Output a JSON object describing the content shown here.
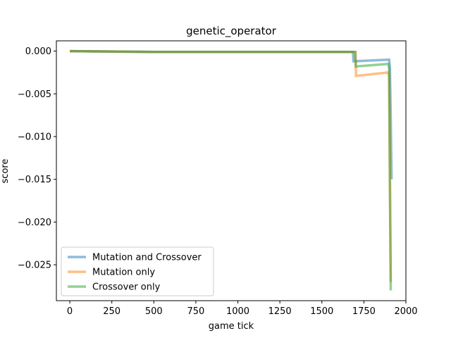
{
  "chart_data": {
    "type": "line",
    "title": "genetic_operator",
    "xlabel": "game tick",
    "ylabel": "score",
    "xlim": [
      -80,
      2000
    ],
    "ylim": [
      -0.0292,
      0.0012
    ],
    "xticks": [
      0,
      250,
      500,
      750,
      1000,
      1250,
      1500,
      1750,
      2000
    ],
    "xtick_labels": [
      "0",
      "250",
      "500",
      "750",
      "1000",
      "1250",
      "1500",
      "1750",
      "2000"
    ],
    "yticks": [
      0.0,
      -0.005,
      -0.01,
      -0.015,
      -0.02,
      -0.025
    ],
    "ytick_labels": [
      "0.000",
      "−0.005",
      "−0.010",
      "−0.015",
      "−0.020",
      "−0.025"
    ],
    "grid": false,
    "legend_position": "lower-left",
    "series": [
      {
        "name": "Mutation and Crossover",
        "color": "#1f77b4",
        "x": [
          0,
          500,
          1000,
          1500,
          1685,
          1688,
          1900,
          1905,
          1910,
          1915
        ],
        "y": [
          0.0,
          -0.0001,
          -0.0001,
          -0.0001,
          -0.0001,
          -0.0012,
          -0.001,
          -0.002,
          -0.008,
          -0.015
        ]
      },
      {
        "name": "Mutation only",
        "color": "#ff7f0e",
        "x": [
          0,
          500,
          1000,
          1500,
          1700,
          1703,
          1895,
          1900,
          1905,
          1910
        ],
        "y": [
          0.0,
          -0.0001,
          -0.0001,
          -0.0001,
          -0.0001,
          -0.0029,
          -0.0025,
          -0.003,
          -0.015,
          -0.027
        ]
      },
      {
        "name": "Crossover only",
        "color": "#2ca02c",
        "x": [
          0,
          500,
          1000,
          1500,
          1698,
          1702,
          1895,
          1900,
          1905,
          1910
        ],
        "y": [
          0.0,
          -0.0001,
          -0.0001,
          -0.0001,
          -0.0001,
          -0.0018,
          -0.0015,
          -0.002,
          -0.015,
          -0.028
        ]
      }
    ]
  }
}
